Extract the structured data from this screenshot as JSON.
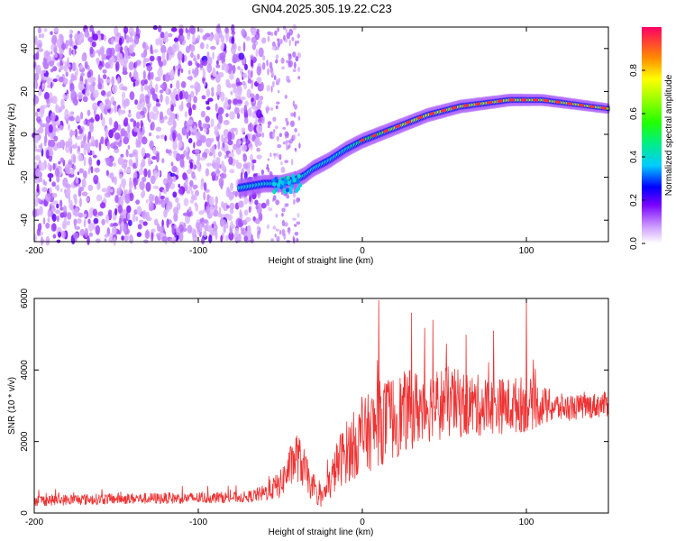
{
  "title": "GN04.2025.305.19.22.C23",
  "chart_data": [
    {
      "type": "heatmap",
      "xlabel": "Height of straight line (km)",
      "ylabel": "Frequency (Hz)",
      "xlim": [
        -200,
        150
      ],
      "ylim": [
        -50,
        50
      ],
      "x_ticks": [
        -200,
        -100,
        0,
        100
      ],
      "y_ticks": [
        -40,
        -20,
        0,
        20,
        40
      ],
      "colorbar": {
        "label": "Normalized spectral amplitude",
        "range": [
          0,
          1
        ],
        "ticks": [
          "0.0",
          "0.2",
          "0.4",
          "0.6",
          "0.8"
        ]
      },
      "ridge": {
        "x": [
          -75,
          -60,
          -50,
          -40,
          -35,
          -30,
          -20,
          -10,
          0,
          10,
          20,
          30,
          40,
          50,
          60,
          70,
          80,
          90,
          100,
          110,
          120,
          130,
          140,
          150
        ],
        "y": [
          -25,
          -23,
          -23,
          -21,
          -19,
          -16,
          -12,
          -7,
          -3,
          0,
          3,
          6,
          9,
          11,
          13,
          14,
          15,
          16,
          16,
          16,
          15,
          14,
          13,
          12
        ]
      }
    },
    {
      "type": "line",
      "xlabel": "Height of straight line (km)",
      "ylabel": "SNR (10 * v/v)",
      "xlim": [
        -200,
        150
      ],
      "ylim": [
        0,
        6000
      ],
      "x_ticks": [
        -200,
        -100,
        0,
        100
      ],
      "y_ticks": [
        0,
        2000,
        4000,
        6000
      ],
      "series": [
        {
          "color": "#ee3333",
          "envelope_x": [
            -200,
            -150,
            -100,
            -70,
            -60,
            -50,
            -45,
            -40,
            -35,
            -30,
            -25,
            -20,
            -15,
            -10,
            -5,
            0,
            5,
            10,
            20,
            30,
            40,
            50,
            60,
            70,
            80,
            90,
            100,
            110,
            120,
            130,
            140,
            150
          ],
          "envelope_mean": [
            350,
            400,
            420,
            450,
            550,
            800,
            1200,
            1600,
            1200,
            600,
            400,
            800,
            1400,
            1700,
            1900,
            2100,
            2300,
            2500,
            2700,
            2900,
            3000,
            3100,
            3050,
            3000,
            3000,
            3000,
            3050,
            3000,
            2950,
            2950,
            3000,
            3050
          ],
          "envelope_spread": [
            200,
            200,
            200,
            200,
            300,
            500,
            700,
            900,
            700,
            400,
            300,
            600,
            900,
            1100,
            1200,
            1300,
            1400,
            1500,
            1500,
            1400,
            1300,
            1300,
            1200,
            1100,
            1000,
            1000,
            1000,
            700,
            500,
            450,
            450,
            450
          ],
          "spikes": [
            [
              10,
              5950
            ],
            [
              30,
              5600
            ],
            [
              43,
              5400
            ],
            [
              100,
              5980
            ],
            [
              80,
              5100
            ]
          ]
        }
      ]
    }
  ]
}
